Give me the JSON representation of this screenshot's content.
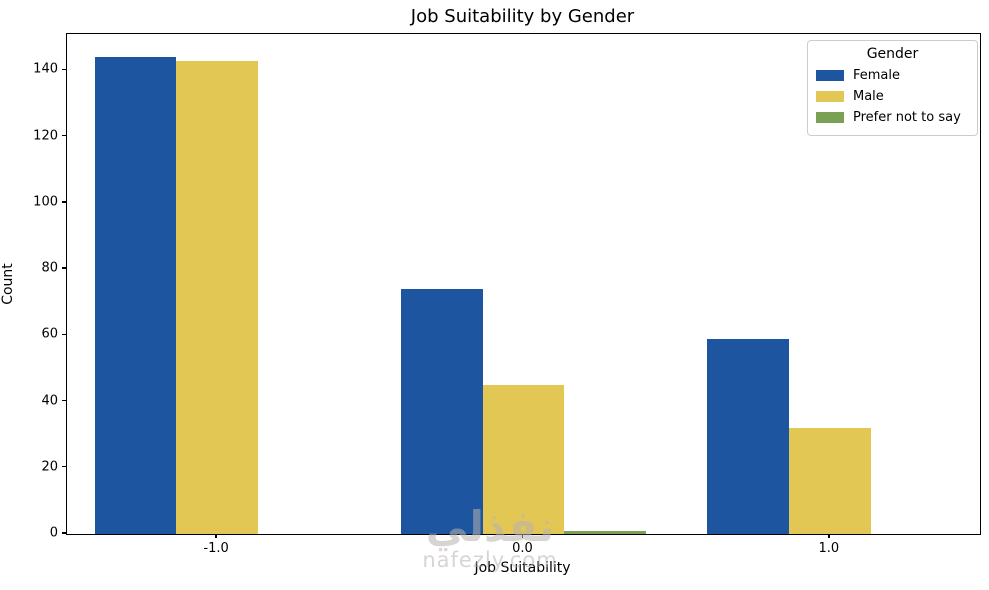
{
  "title": "Job Suitability by Gender",
  "watermark": {
    "arabic": "نفذلي",
    "latin": "nafezly.com"
  },
  "chart_data": {
    "type": "bar",
    "title": "Job Suitability by Gender",
    "xlabel": "Job Suitability",
    "ylabel": "Count",
    "categories": [
      "-1.0",
      "0.0",
      "1.0"
    ],
    "series": [
      {
        "name": "Female",
        "color": "#1d55a0",
        "values": [
          144,
          74,
          59
        ]
      },
      {
        "name": "Male",
        "color": "#e3c755",
        "values": [
          143,
          45,
          32
        ]
      },
      {
        "name": "Prefer not to say",
        "color": "#7aa054",
        "values": [
          0,
          1,
          0
        ]
      }
    ],
    "yticks": [
      0,
      20,
      40,
      60,
      80,
      100,
      120,
      140
    ],
    "ylim": [
      0,
      151
    ],
    "xlim": [
      -1.49,
      1.49
    ],
    "grid": false,
    "legend": {
      "title": "Gender",
      "position": "upper right"
    }
  }
}
